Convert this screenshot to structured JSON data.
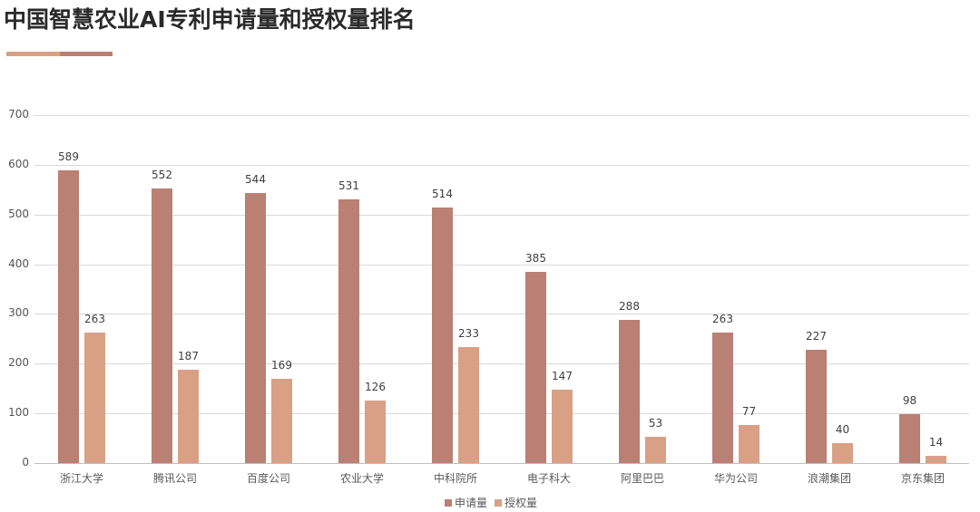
{
  "header": {
    "title": "中国智慧农业AI专利申请量和授权量排名",
    "accent_colors": [
      "#d9a085",
      "#b98073"
    ]
  },
  "colors": {
    "series1": "#b98073",
    "series2": "#d9a085"
  },
  "legend": {
    "items": [
      {
        "label": "申请量",
        "color": "#b98073"
      },
      {
        "label": "授权量",
        "color": "#d9a085"
      }
    ]
  },
  "chart_data": {
    "type": "bar",
    "title": "中国智慧农业AI专利申请量和授权量排名",
    "xlabel": "",
    "ylabel": "",
    "ylim": [
      0,
      700
    ],
    "yticks": [
      0,
      100,
      200,
      300,
      400,
      500,
      600,
      700
    ],
    "grid": true,
    "legend_position": "bottom",
    "categories": [
      "浙江大学",
      "腾讯公司",
      "百度公司",
      "农业大学",
      "中科院所",
      "电子科大",
      "阿里巴巴",
      "华为公司",
      "浪潮集团",
      "京东集团"
    ],
    "series": [
      {
        "name": "申请量",
        "color": "#b98073",
        "values": [
          589,
          552,
          544,
          531,
          514,
          385,
          288,
          263,
          227,
          98
        ]
      },
      {
        "name": "授权量",
        "color": "#d9a085",
        "values": [
          263,
          187,
          169,
          126,
          233,
          147,
          53,
          77,
          40,
          14
        ]
      }
    ]
  }
}
